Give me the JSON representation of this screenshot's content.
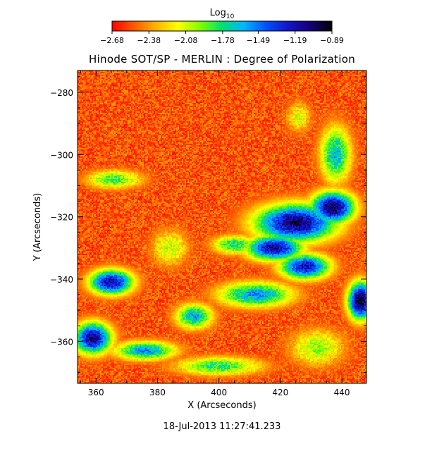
{
  "chart_data": {
    "type": "heatmap",
    "title": "Hinode SOT/SP - MERLIN : Degree of Polarization",
    "xlabel": "X (Arcseconds)",
    "ylabel": "Y (Arcseconds)",
    "xlim": [
      354,
      448
    ],
    "ylim": [
      -373.5,
      -273
    ],
    "x_ticks": [
      360,
      380,
      400,
      420,
      440
    ],
    "y_ticks": [
      -280,
      -300,
      -320,
      -340,
      -360
    ],
    "x_tick_labels": [
      "360",
      "380",
      "400",
      "420",
      "440"
    ],
    "y_tick_labels": [
      "−280",
      "−300",
      "−320",
      "−340",
      "−360"
    ],
    "colorbar": {
      "label_base": "Log",
      "label_sub": "10",
      "range": [
        -2.68,
        -0.89
      ],
      "tick_values": [
        -2.68,
        -2.38,
        -2.08,
        -1.78,
        -1.49,
        -1.19,
        -0.89
      ],
      "tick_labels": [
        "−2.68",
        "−2.38",
        "−2.08",
        "−1.78",
        "−1.49",
        "−1.19",
        "−0.89"
      ],
      "colormap": [
        "#ff0000",
        "#ff5a00",
        "#ffb400",
        "#ffff00",
        "#80ff00",
        "#00e070",
        "#00b4ff",
        "#0050ff",
        "#1414c8",
        "#140078",
        "#000000"
      ]
    },
    "grid": false,
    "background_level": -2.65,
    "features": [
      {
        "x": 425,
        "y": -322,
        "rx": 13,
        "ry": 6,
        "level": -1.05
      },
      {
        "x": 418,
        "y": -330,
        "rx": 9,
        "ry": 4,
        "level": -1.12
      },
      {
        "x": 437,
        "y": -317,
        "rx": 7,
        "ry": 5,
        "level": -1.0
      },
      {
        "x": 428,
        "y": -336,
        "rx": 8,
        "ry": 4,
        "level": -1.2
      },
      {
        "x": 446,
        "y": -347,
        "rx": 4,
        "ry": 6,
        "level": -0.95
      },
      {
        "x": 365,
        "y": -341,
        "rx": 7,
        "ry": 4,
        "level": -1.15
      },
      {
        "x": 359,
        "y": -359,
        "rx": 6,
        "ry": 5,
        "level": -1.1
      },
      {
        "x": 376,
        "y": -363,
        "rx": 10,
        "ry": 3,
        "level": -1.55
      },
      {
        "x": 392,
        "y": -352,
        "rx": 6,
        "ry": 4,
        "level": -1.6
      },
      {
        "x": 366,
        "y": -308,
        "rx": 9,
        "ry": 3,
        "level": -1.85
      },
      {
        "x": 412,
        "y": -345,
        "rx": 12,
        "ry": 4,
        "level": -1.55
      },
      {
        "x": 400,
        "y": -368,
        "rx": 14,
        "ry": 3,
        "level": -1.8
      },
      {
        "x": 438,
        "y": -300,
        "rx": 5,
        "ry": 9,
        "level": -1.65
      },
      {
        "x": 426,
        "y": -288,
        "rx": 4,
        "ry": 5,
        "level": -2.1
      },
      {
        "x": 432,
        "y": -362,
        "rx": 9,
        "ry": 6,
        "level": -2.0
      },
      {
        "x": 384,
        "y": -330,
        "rx": 6,
        "ry": 6,
        "level": -2.05
      },
      {
        "x": 405,
        "y": -329,
        "rx": 7,
        "ry": 3,
        "level": -1.75
      }
    ]
  },
  "timestamp": "18-Jul-2013 11:27:41.233"
}
